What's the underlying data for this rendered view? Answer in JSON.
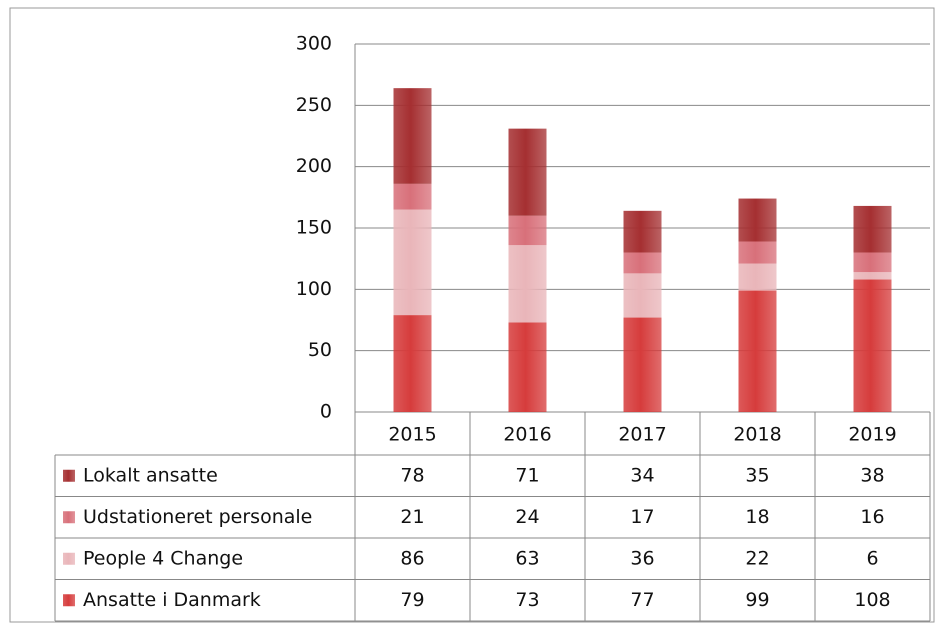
{
  "chart_data": {
    "type": "stacked_bar",
    "categories": [
      "2015",
      "2016",
      "2017",
      "2018",
      "2019"
    ],
    "series": [
      {
        "name": "Ansatte i Danmark",
        "color": "#d63c3c",
        "values": [
          79,
          73,
          77,
          99,
          108
        ]
      },
      {
        "name": "People 4 Change",
        "color": "#e9b5b9",
        "values": [
          86,
          63,
          36,
          22,
          6
        ]
      },
      {
        "name": "Udstationeret personale",
        "color": "#d8707a",
        "values": [
          21,
          24,
          17,
          18,
          16
        ]
      },
      {
        "name": "Lokalt ansatte",
        "color": "#a52f31",
        "values": [
          78,
          71,
          34,
          35,
          38
        ]
      }
    ],
    "ylim": [
      0,
      300
    ],
    "yticks": [
      0,
      50,
      100,
      150,
      200,
      250,
      300
    ],
    "grid": true,
    "data_table": true
  }
}
